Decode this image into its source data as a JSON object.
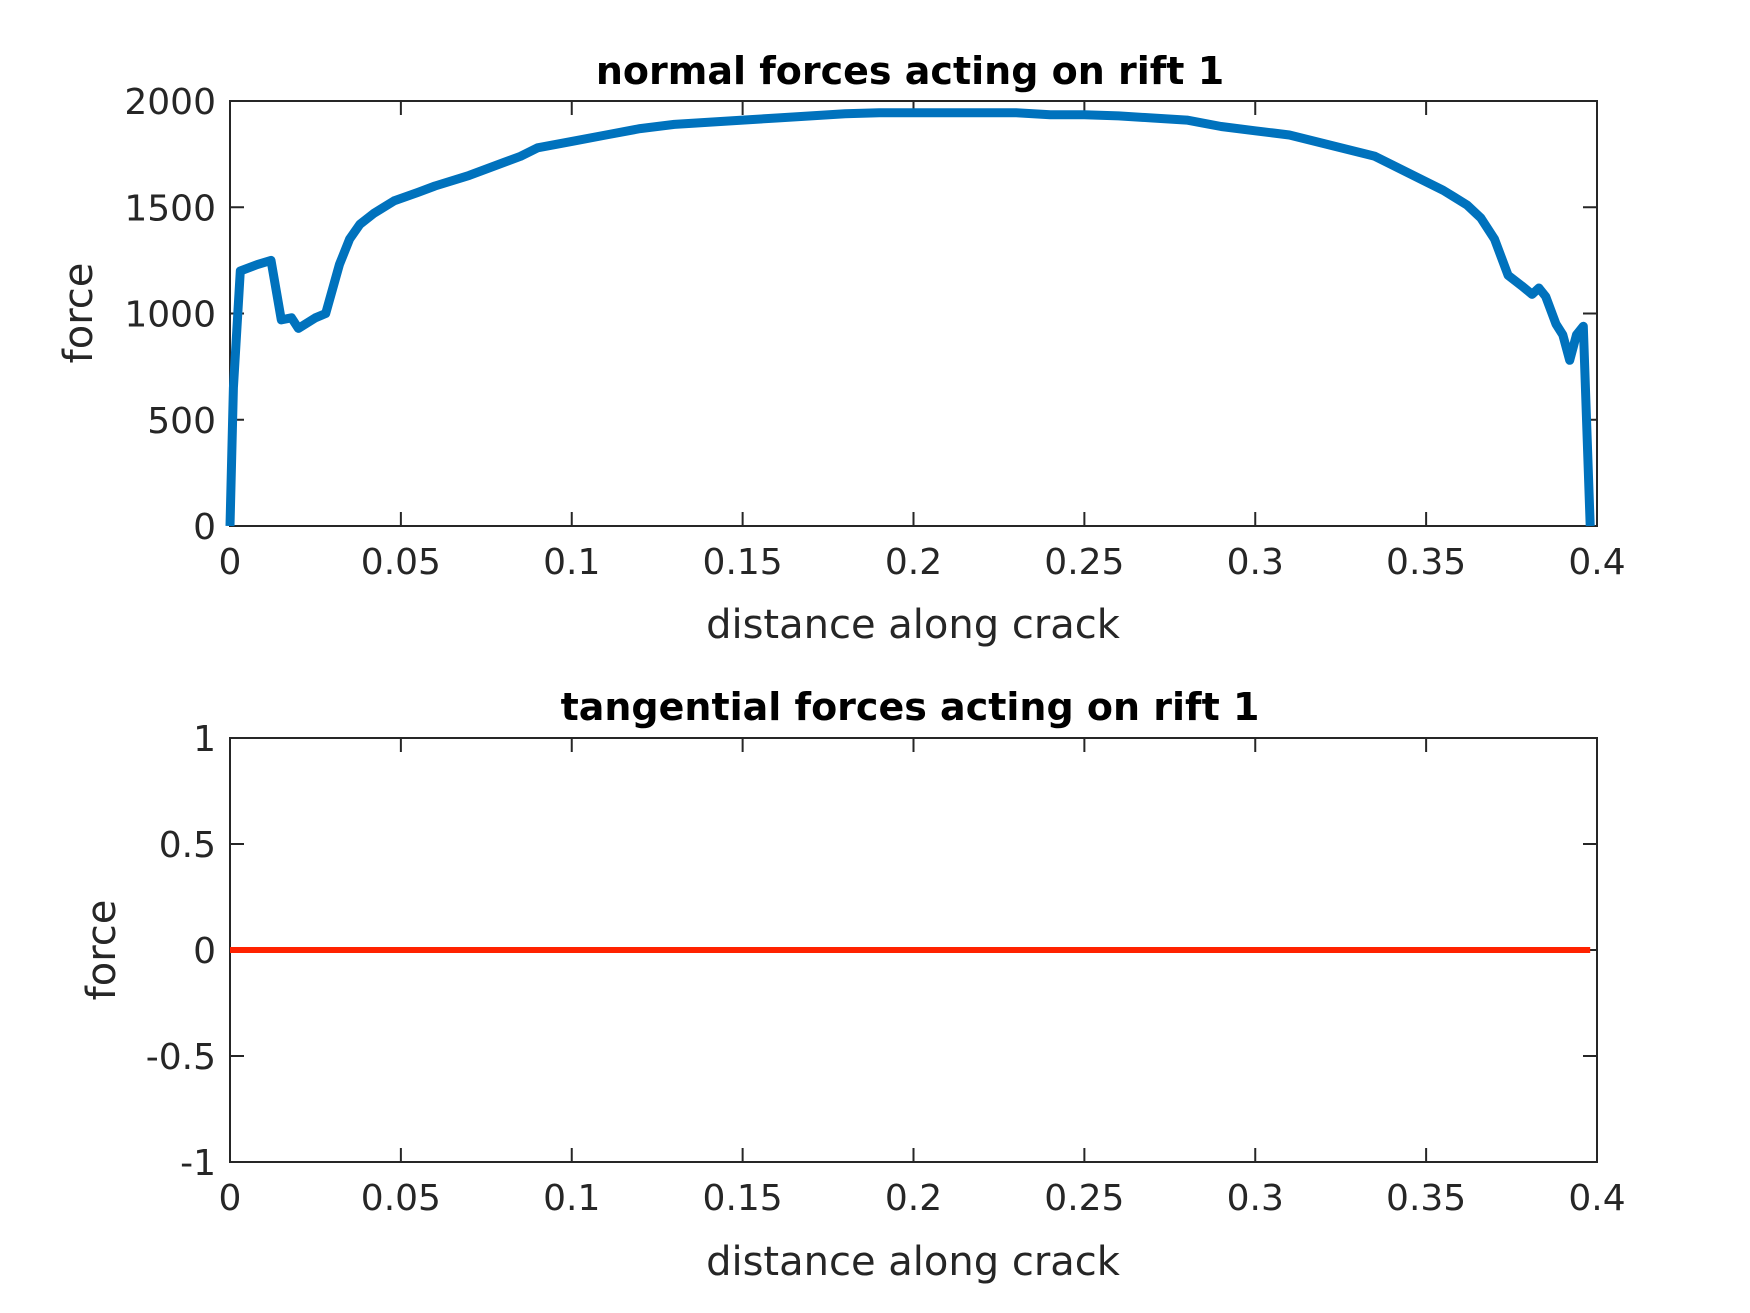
{
  "chart_data": [
    {
      "type": "line",
      "title": "normal forces acting on rift 1",
      "xlabel": "distance along crack",
      "ylabel": "force",
      "xlim": [
        0,
        0.4
      ],
      "ylim": [
        0,
        2000
      ],
      "xticks": [
        "0",
        "0.05",
        "0.1",
        "0.15",
        "0.2",
        "0.25",
        "0.3",
        "0.35",
        "0.4"
      ],
      "yticks": [
        "0",
        "500",
        "1000",
        "1500",
        "2000"
      ],
      "grid": false,
      "line_color": "#0072BD",
      "series": [
        {
          "x": [
            0,
            0.001,
            0.003,
            0.008,
            0.012,
            0.015,
            0.018,
            0.02,
            0.025,
            0.028,
            0.032,
            0.035,
            0.038,
            0.042,
            0.048,
            0.055,
            0.06,
            0.07,
            0.08,
            0.085,
            0.09,
            0.1,
            0.11,
            0.12,
            0.13,
            0.14,
            0.15,
            0.16,
            0.17,
            0.18,
            0.19,
            0.2,
            0.21,
            0.22,
            0.23,
            0.24,
            0.25,
            0.26,
            0.27,
            0.28,
            0.29,
            0.3,
            0.305,
            0.31,
            0.32,
            0.33,
            0.335,
            0.34,
            0.35,
            0.355,
            0.358,
            0.362,
            0.366,
            0.37,
            0.374,
            0.378,
            0.381,
            0.383,
            0.385,
            0.388,
            0.39,
            0.392,
            0.394,
            0.396,
            0.398
          ],
          "y": [
            0,
            650,
            1200,
            1230,
            1250,
            970,
            980,
            930,
            980,
            1000,
            1230,
            1350,
            1420,
            1470,
            1530,
            1570,
            1600,
            1650,
            1710,
            1740,
            1780,
            1810,
            1840,
            1870,
            1890,
            1900,
            1910,
            1920,
            1930,
            1940,
            1945,
            1945,
            1945,
            1945,
            1945,
            1935,
            1935,
            1930,
            1920,
            1910,
            1880,
            1860,
            1850,
            1840,
            1800,
            1760,
            1740,
            1700,
            1620,
            1580,
            1550,
            1510,
            1450,
            1350,
            1180,
            1130,
            1090,
            1120,
            1080,
            950,
            900,
            780,
            900,
            940,
            0
          ]
        }
      ]
    },
    {
      "type": "line",
      "title": "tangential forces acting on rift 1",
      "xlabel": "distance along crack",
      "ylabel": "force",
      "xlim": [
        0,
        0.4
      ],
      "ylim": [
        -1,
        1
      ],
      "xticks": [
        "0",
        "0.05",
        "0.1",
        "0.15",
        "0.2",
        "0.25",
        "0.3",
        "0.35",
        "0.4"
      ],
      "yticks": [
        "-1",
        "-0.5",
        "0",
        "0.5",
        "1"
      ],
      "grid": false,
      "line_color": "#FF2200",
      "series": [
        {
          "x": [
            0,
            0.398
          ],
          "y": [
            0,
            0
          ]
        }
      ]
    }
  ]
}
